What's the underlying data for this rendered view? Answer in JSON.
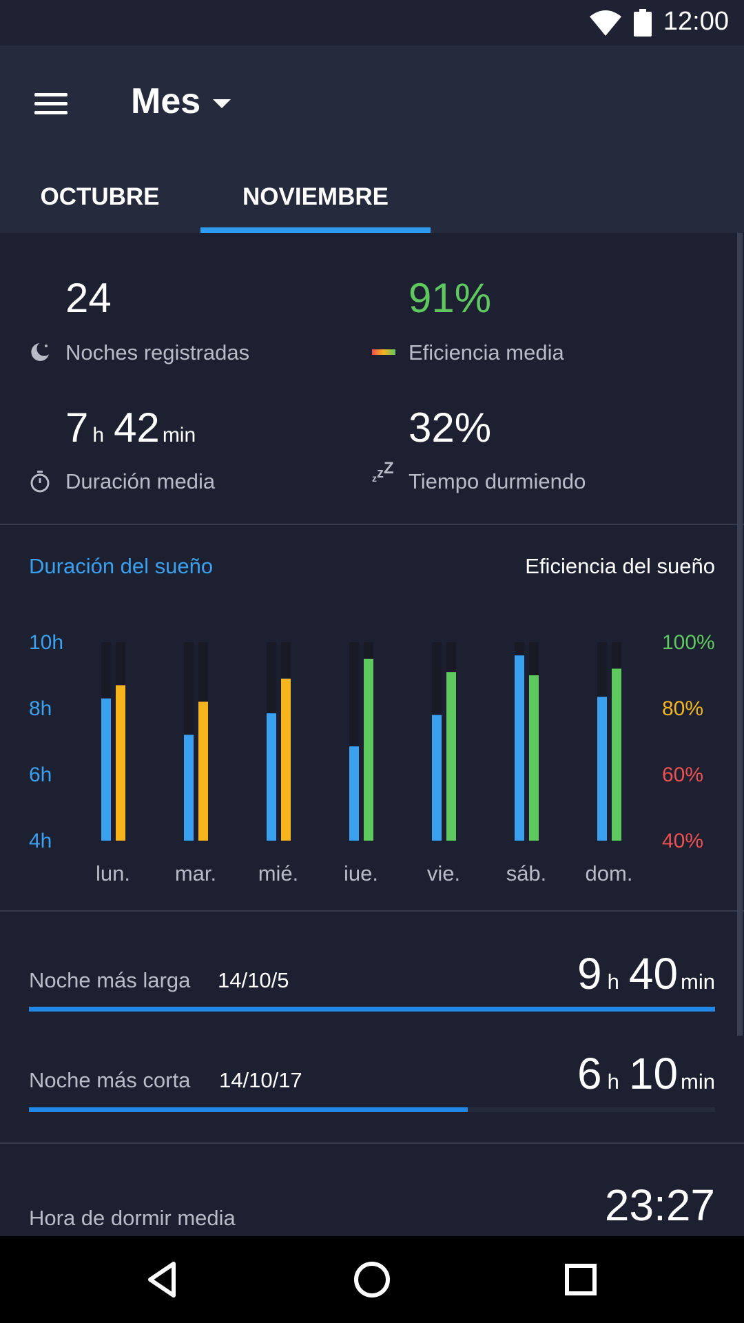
{
  "status_bar": {
    "time": "12:00",
    "icons": [
      "wifi-icon",
      "battery-icon"
    ]
  },
  "app_bar": {
    "title": "Mes",
    "tabs": [
      {
        "label": "OCTUBRE",
        "selected": false
      },
      {
        "label": "NOVIEMBRE",
        "selected": true
      }
    ]
  },
  "stats": {
    "nights": {
      "value": "24",
      "label": "Noches registradas",
      "icon": "moon-icon"
    },
    "efficiency": {
      "value": "91%",
      "label": "Eficiencia media",
      "icon": "gradient-bar-icon",
      "color": "#5fc85f"
    },
    "duration": {
      "hours": "7",
      "hours_unit": "h",
      "minutes": "42",
      "minutes_unit": "min",
      "label": "Duración media",
      "icon": "stopwatch-icon"
    },
    "asleep": {
      "value": "32%",
      "label": "Tiempo durmiendo",
      "icon": "zzz-icon"
    }
  },
  "chart_data": {
    "type": "bar",
    "legend_left": "Duración del sueño",
    "legend_right": "Eficiencia del sueño",
    "categories": [
      "lun.",
      "mar.",
      "mié.",
      "iue.",
      "vie.",
      "sáb.",
      "dom."
    ],
    "left_axis": {
      "ticks": [
        "10h",
        "8h",
        "6h",
        "4h"
      ],
      "range": [
        4,
        10
      ],
      "color": "#3aa0f0"
    },
    "right_axis": {
      "ticks": [
        {
          "label": "100%",
          "color": "#5fc85f"
        },
        {
          "label": "80%",
          "color": "#f7b51d"
        },
        {
          "label": "60%",
          "color": "#ee4f4f"
        },
        {
          "label": "40%",
          "color": "#ee4f4f"
        }
      ],
      "range": [
        40,
        100
      ]
    },
    "series": [
      {
        "name": "Duración del sueño",
        "unit": "h",
        "color": "#3aa0f0",
        "values": [
          8.3,
          7.2,
          7.85,
          6.85,
          7.8,
          9.6,
          8.35
        ]
      },
      {
        "name": "Eficiencia del sueño",
        "unit": "%",
        "values": [
          87,
          82,
          89,
          95,
          91,
          90,
          92
        ],
        "colors": [
          "#f7b51d",
          "#f7b51d",
          "#f7b51d",
          "#5fc85f",
          "#5fc85f",
          "#5fc85f",
          "#5fc85f"
        ]
      }
    ]
  },
  "records": {
    "longest": {
      "label": "Noche más larga",
      "date": "14/10/5",
      "hours": "9",
      "hours_unit": "h",
      "minutes": "40",
      "minutes_unit": "min",
      "fraction": 1.0
    },
    "shortest": {
      "label": "Noche más corta",
      "date": "14/10/17",
      "hours": "6",
      "hours_unit": "h",
      "minutes": "10",
      "minutes_unit": "min",
      "fraction": 0.64
    },
    "bedtime": {
      "label": "Hora de dormir media",
      "value": "23:27"
    }
  },
  "nav_bar": {
    "buttons": [
      "back-icon",
      "home-icon",
      "recents-icon"
    ]
  }
}
